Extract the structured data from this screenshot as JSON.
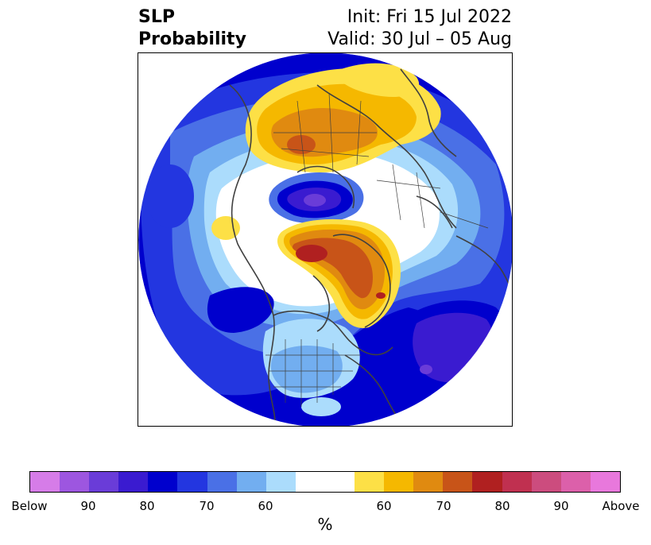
{
  "title": {
    "left_line1": "SLP",
    "left_line2": "Probability",
    "right_line1": "Init: Fri 15 Jul 2022",
    "right_line2": "Valid: 30 Jul – 05 Aug"
  },
  "colorbar": {
    "units_label": "%",
    "colors": [
      "#d67ce8",
      "#9d56e0",
      "#6a3cd8",
      "#3a1bd0",
      "#0000cd",
      "#2336e0",
      "#4a70e6",
      "#72aef0",
      "#abdcfc",
      "#ffffff",
      "#ffffff",
      "#fde046",
      "#f5b800",
      "#e08a10",
      "#c85418",
      "#b02020",
      "#c03050",
      "#cc4c7e",
      "#dc60aa",
      "#e878dc"
    ],
    "tick_labels": [
      "Below",
      "90",
      "80",
      "70",
      "60",
      "60",
      "70",
      "80",
      "90",
      "Above"
    ]
  },
  "map": {
    "projection": "north polar stereographic",
    "colors": {
      "deep_blue": "#0000cd",
      "mid_blue": "#2336e0",
      "blue": "#4a70e6",
      "light_blue": "#72aef0",
      "pale_blue": "#abdcfc",
      "purple": "#3a1bd0",
      "violet": "#6a3cd8",
      "yellow": "#fde046",
      "gold": "#f5b800",
      "orange": "#e08a10",
      "rust": "#c85418",
      "red": "#b02020",
      "coast": "#404040"
    }
  }
}
